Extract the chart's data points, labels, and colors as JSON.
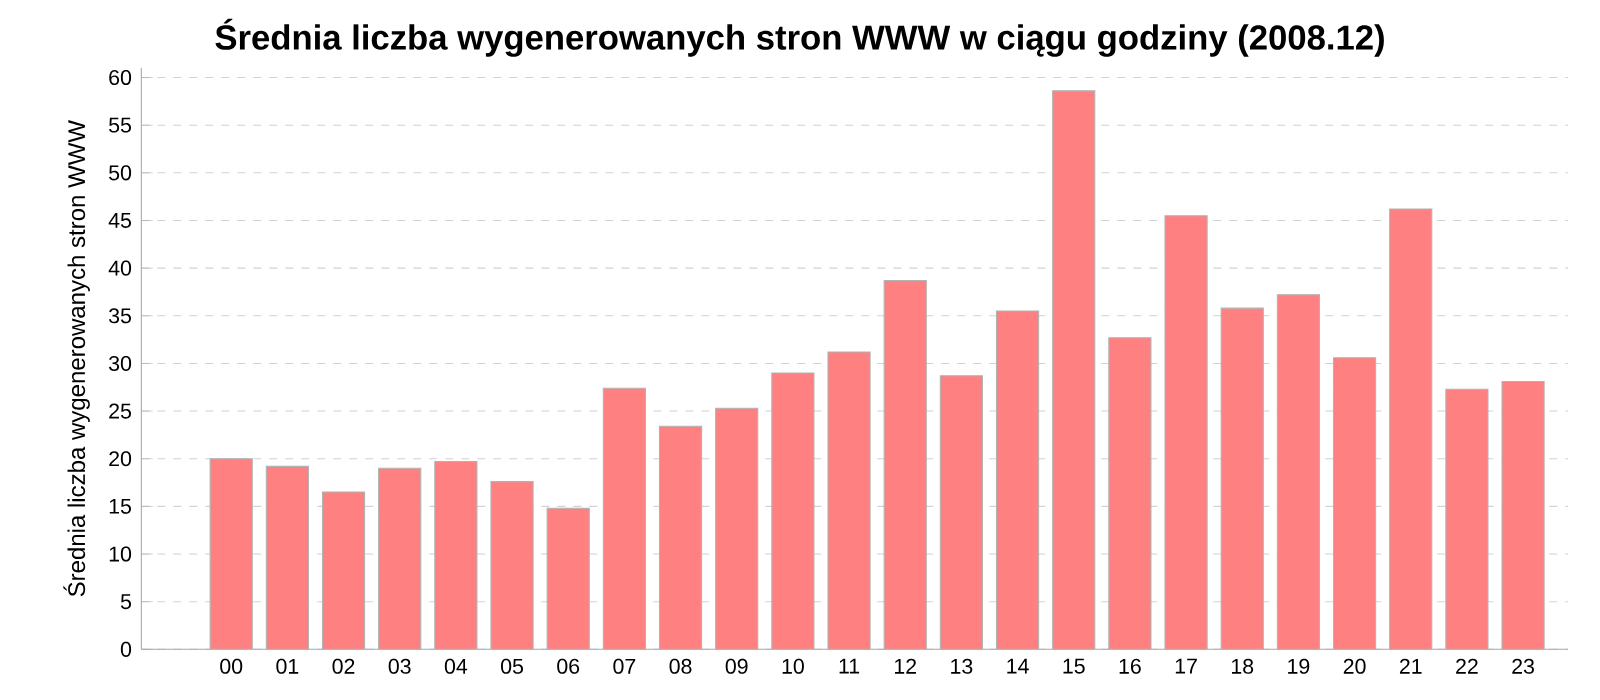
{
  "chart_data": {
    "type": "bar",
    "title": "Średnia liczba wygenerowanych stron WWW w ciągu godziny (2008.12)",
    "ylabel": "Średnia liczba wygenerowanych stron WWW",
    "categories": [
      "00",
      "01",
      "02",
      "03",
      "04",
      "05",
      "06",
      "07",
      "08",
      "09",
      "10",
      "11",
      "12",
      "13",
      "14",
      "15",
      "16",
      "17",
      "18",
      "19",
      "20",
      "21",
      "22",
      "23"
    ],
    "values": [
      20.0,
      19.2,
      16.5,
      19.0,
      19.7,
      17.6,
      14.8,
      27.4,
      23.4,
      25.3,
      29.0,
      31.2,
      38.7,
      28.7,
      35.5,
      58.6,
      32.7,
      45.5,
      35.8,
      37.2,
      30.6,
      46.2,
      27.3,
      28.1
    ],
    "color": "#ff8080",
    "ylim": [
      0,
      61
    ],
    "yticks": [
      0,
      5,
      10,
      15,
      20,
      25,
      30,
      35,
      40,
      45,
      50,
      55,
      60
    ],
    "grid": "y"
  }
}
